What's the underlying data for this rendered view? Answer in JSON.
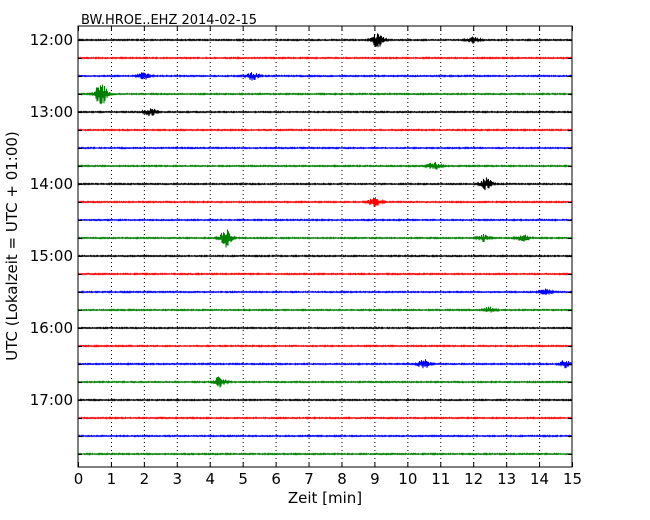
{
  "chart_data": {
    "type": "line",
    "title": "BW.HROE..EHZ 2014-02-15",
    "xlabel": "Zeit  [min]",
    "ylabel": "UTC (Lokalzeit = UTC + 01:00)",
    "xlim": [
      0,
      15
    ],
    "x_ticks": [
      "0",
      "1",
      "2",
      "3",
      "4",
      "5",
      "6",
      "7",
      "8",
      "9",
      "10",
      "11",
      "12",
      "13",
      "14",
      "15"
    ],
    "y_ticks": [
      "12:00",
      "13:00",
      "14:00",
      "15:00",
      "16:00",
      "17:00"
    ],
    "grid": "vertical dotted lines at each minute",
    "trace_colors": [
      "#000000",
      "#ff0000",
      "#0000ff",
      "#008000"
    ],
    "traces": [
      {
        "start": "12:00",
        "color": "#000000",
        "events": [
          {
            "t": 9.1,
            "amp": 0.7
          },
          {
            "t": 12.0,
            "amp": 0.35
          }
        ]
      },
      {
        "start": "12:15",
        "color": "#ff0000",
        "events": []
      },
      {
        "start": "12:30",
        "color": "#0000ff",
        "events": [
          {
            "t": 2.0,
            "amp": 0.35
          },
          {
            "t": 5.3,
            "amp": 0.4
          }
        ]
      },
      {
        "start": "12:45",
        "color": "#008000",
        "events": [
          {
            "t": 0.7,
            "amp": 1.2
          }
        ]
      },
      {
        "start": "13:00",
        "color": "#000000",
        "events": [
          {
            "t": 2.2,
            "amp": 0.4
          }
        ]
      },
      {
        "start": "13:15",
        "color": "#ff0000",
        "events": []
      },
      {
        "start": "13:30",
        "color": "#0000ff",
        "events": []
      },
      {
        "start": "13:45",
        "color": "#008000",
        "events": [
          {
            "t": 10.8,
            "amp": 0.4
          }
        ]
      },
      {
        "start": "14:00",
        "color": "#000000",
        "events": [
          {
            "t": 12.4,
            "amp": 0.6
          }
        ]
      },
      {
        "start": "14:15",
        "color": "#ff0000",
        "events": [
          {
            "t": 9.0,
            "amp": 0.45
          }
        ]
      },
      {
        "start": "14:30",
        "color": "#0000ff",
        "events": []
      },
      {
        "start": "14:45",
        "color": "#008000",
        "events": [
          {
            "t": 4.5,
            "amp": 1.0
          },
          {
            "t": 12.3,
            "amp": 0.35
          },
          {
            "t": 13.5,
            "amp": 0.35
          }
        ]
      },
      {
        "start": "15:00",
        "color": "#000000",
        "events": []
      },
      {
        "start": "15:15",
        "color": "#ff0000",
        "events": []
      },
      {
        "start": "15:30",
        "color": "#0000ff",
        "events": [
          {
            "t": 14.2,
            "amp": 0.3
          }
        ]
      },
      {
        "start": "15:45",
        "color": "#008000",
        "events": [
          {
            "t": 12.5,
            "amp": 0.3
          }
        ]
      },
      {
        "start": "16:00",
        "color": "#000000",
        "events": []
      },
      {
        "start": "16:15",
        "color": "#ff0000",
        "events": []
      },
      {
        "start": "16:30",
        "color": "#0000ff",
        "events": [
          {
            "t": 10.5,
            "amp": 0.45
          },
          {
            "t": 14.8,
            "amp": 0.4
          }
        ]
      },
      {
        "start": "16:45",
        "color": "#008000",
        "events": [
          {
            "t": 4.3,
            "amp": 0.5
          }
        ]
      },
      {
        "start": "17:00",
        "color": "#000000",
        "events": []
      },
      {
        "start": "17:15",
        "color": "#ff0000",
        "events": []
      },
      {
        "start": "17:30",
        "color": "#0000ff",
        "events": []
      },
      {
        "start": "17:45",
        "color": "#008000",
        "events": []
      }
    ]
  }
}
